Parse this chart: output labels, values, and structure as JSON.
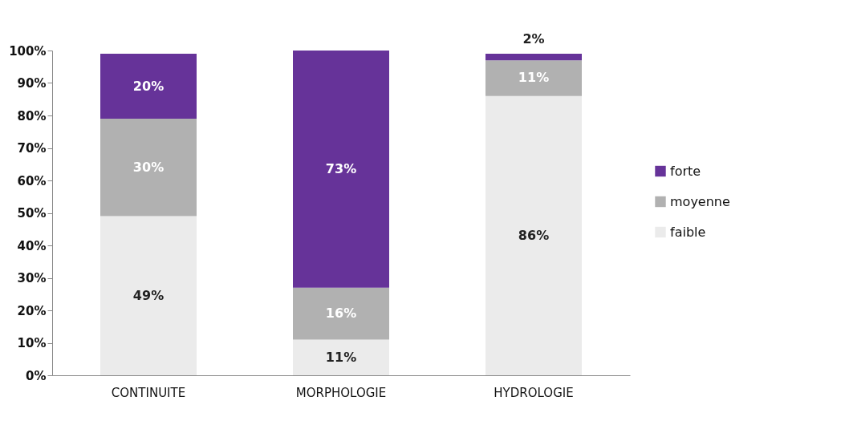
{
  "chart_data": {
    "type": "bar",
    "stacked": true,
    "legend": "right",
    "grid": false,
    "categories": [
      "CONTINUITE",
      "MORPHOLOGIE",
      "HYDROLOGIE"
    ],
    "series": [
      {
        "name": "faible",
        "color": "#ebebeb",
        "values": [
          49,
          11,
          86
        ],
        "value_labels": [
          "49%",
          "11%",
          "86%"
        ]
      },
      {
        "name": "moyenne",
        "color": "#b1b1b1",
        "values": [
          30,
          16,
          11
        ],
        "value_labels": [
          "30%",
          "16%",
          "11%"
        ]
      },
      {
        "name": "forte",
        "color": "#663399",
        "values": [
          20,
          73,
          2
        ],
        "value_labels": [
          "20%",
          "73%",
          "2%"
        ]
      }
    ],
    "ylim": [
      0,
      100
    ],
    "yticks": [
      {
        "value": 0,
        "label": "0%"
      },
      {
        "value": 10,
        "label": "10%"
      },
      {
        "value": 20,
        "label": "20%"
      },
      {
        "value": 30,
        "label": "30%"
      },
      {
        "value": 40,
        "label": "40%"
      },
      {
        "value": 50,
        "label": "50%"
      },
      {
        "value": 60,
        "label": "60%"
      },
      {
        "value": 70,
        "label": "70%"
      },
      {
        "value": 80,
        "label": "80%"
      },
      {
        "value": 90,
        "label": "90%"
      },
      {
        "value": 100,
        "label": "100%"
      }
    ]
  }
}
